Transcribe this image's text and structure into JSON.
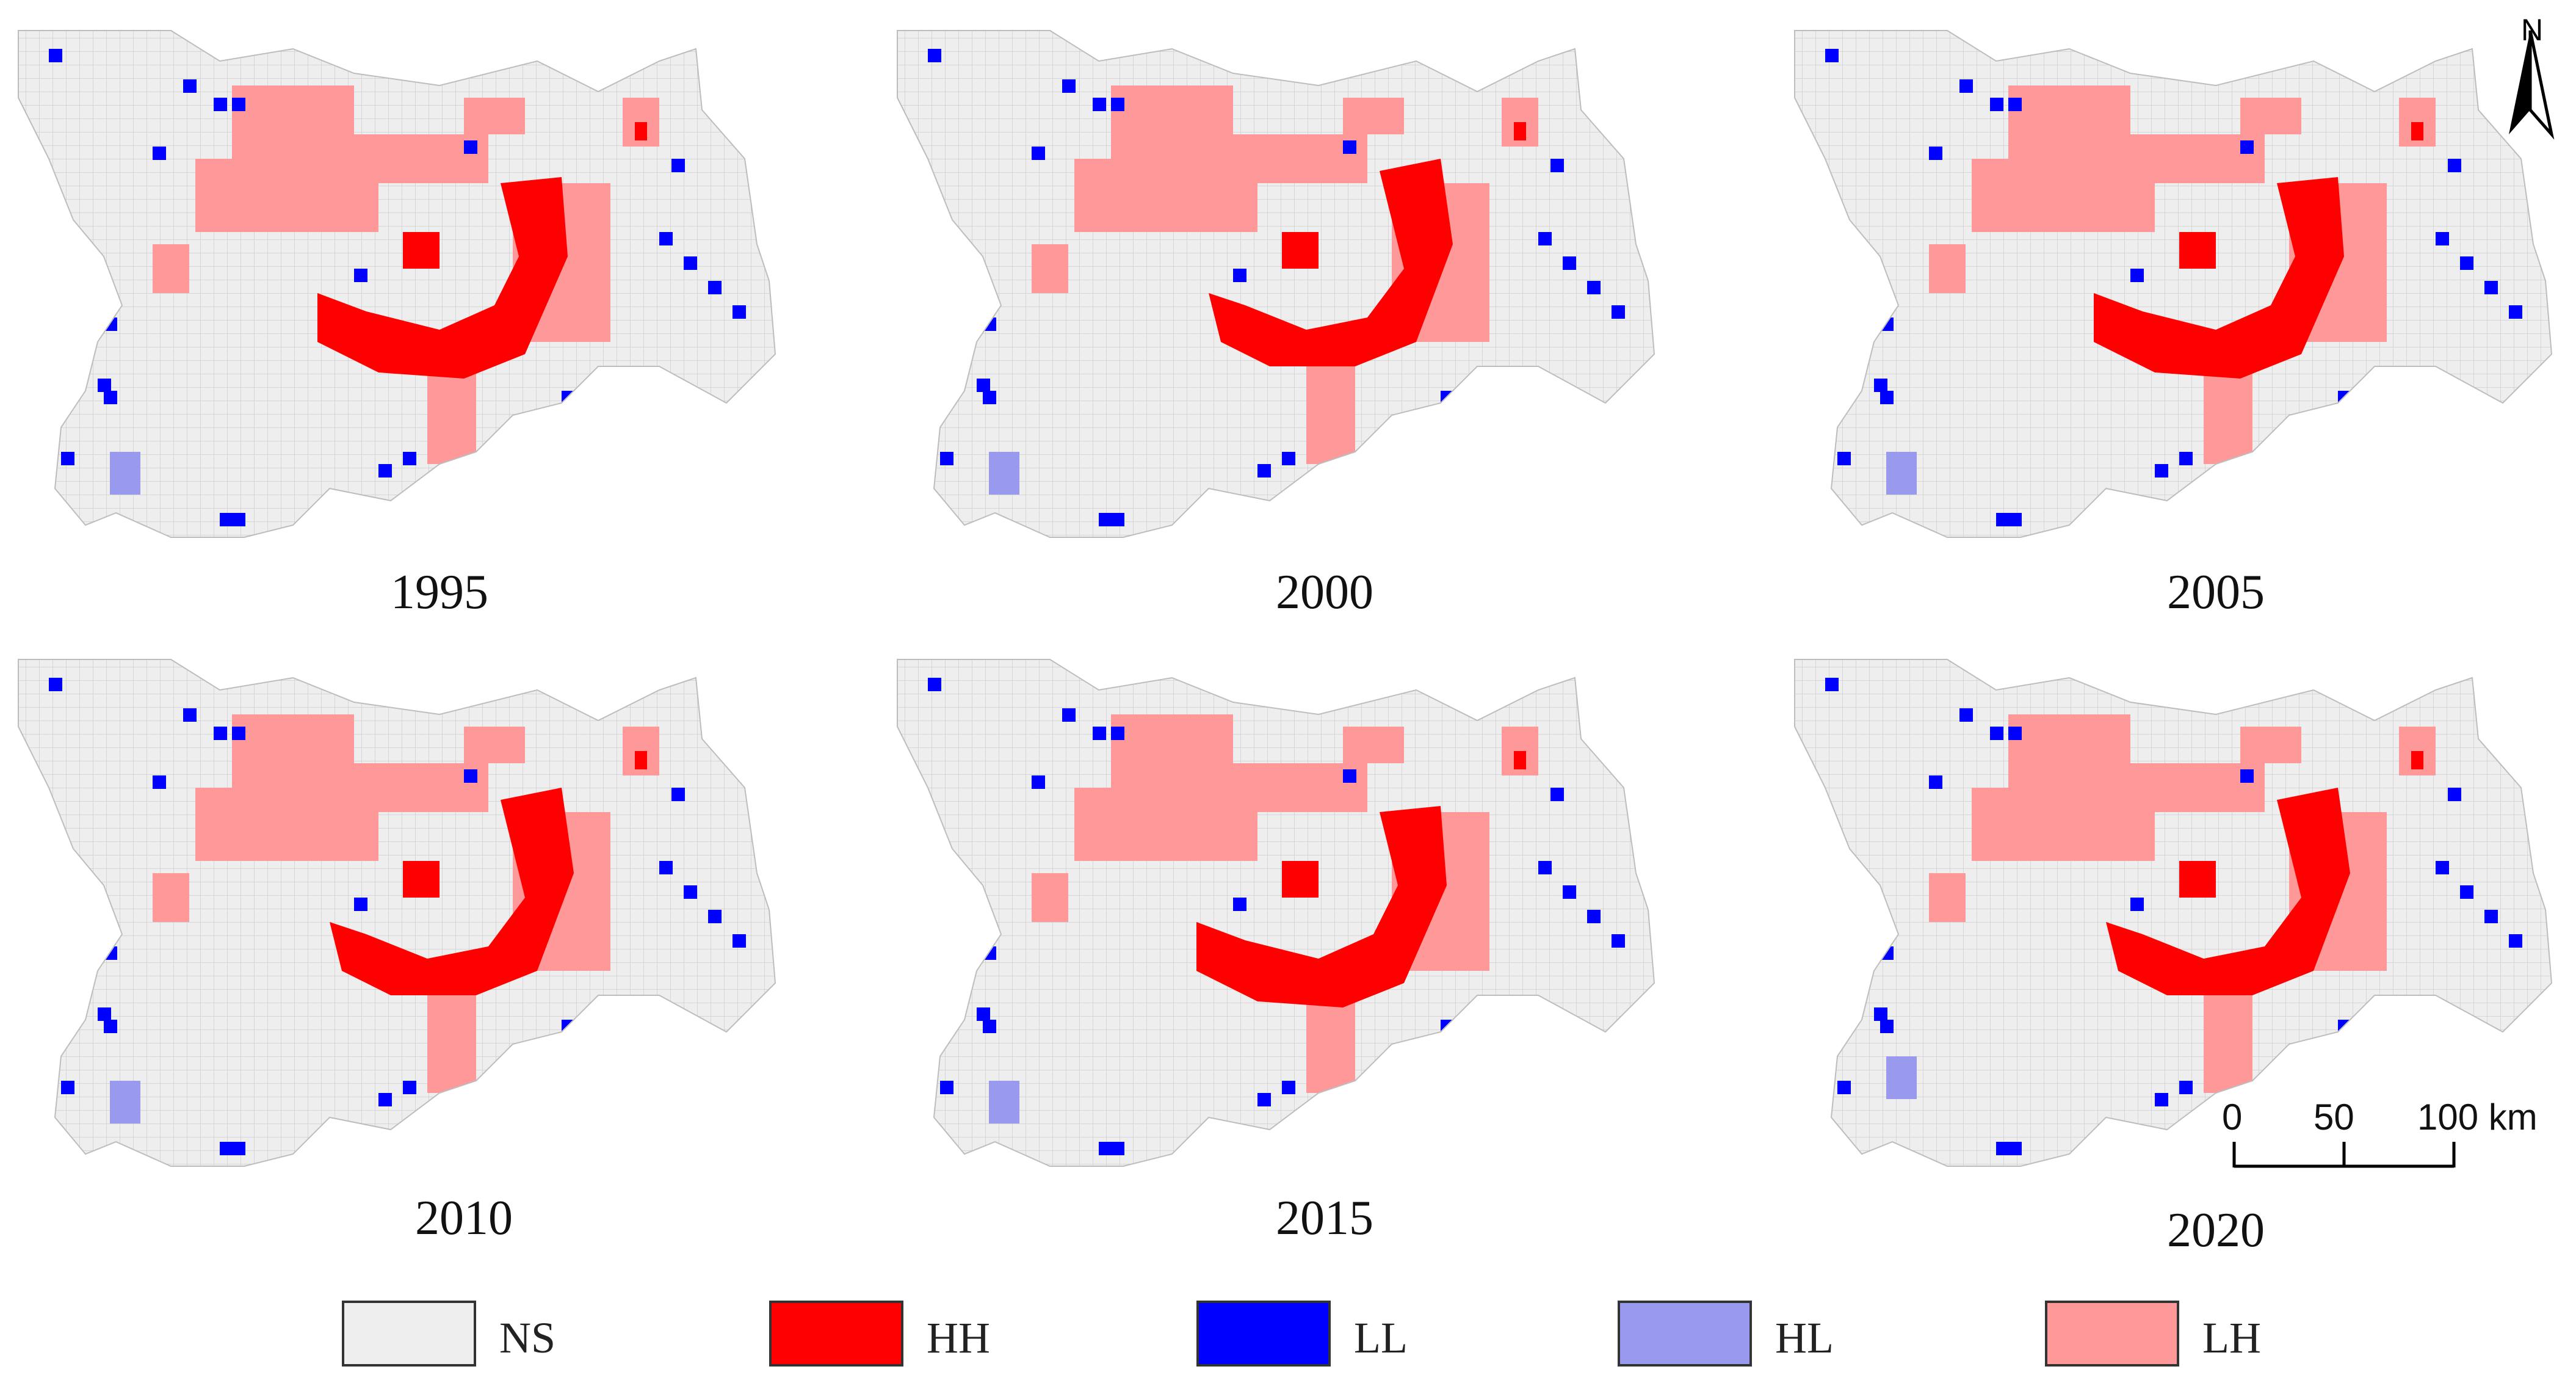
{
  "panels": [
    {
      "year": "1995"
    },
    {
      "year": "2000"
    },
    {
      "year": "2005"
    },
    {
      "year": "2010"
    },
    {
      "year": "2015"
    },
    {
      "year": "2020"
    }
  ],
  "north_arrow": {
    "label": "N"
  },
  "scale_bar": {
    "ticks": [
      "0",
      "50",
      "100 km"
    ]
  },
  "legend": [
    {
      "label": "NS",
      "color": "#eeeeee"
    },
    {
      "label": "HH",
      "color": "#ff0000"
    },
    {
      "label": "LL",
      "color": "#0000ff"
    },
    {
      "label": "HL",
      "color": "#9999ee"
    },
    {
      "label": "LH",
      "color": "#ff9999"
    }
  ]
}
